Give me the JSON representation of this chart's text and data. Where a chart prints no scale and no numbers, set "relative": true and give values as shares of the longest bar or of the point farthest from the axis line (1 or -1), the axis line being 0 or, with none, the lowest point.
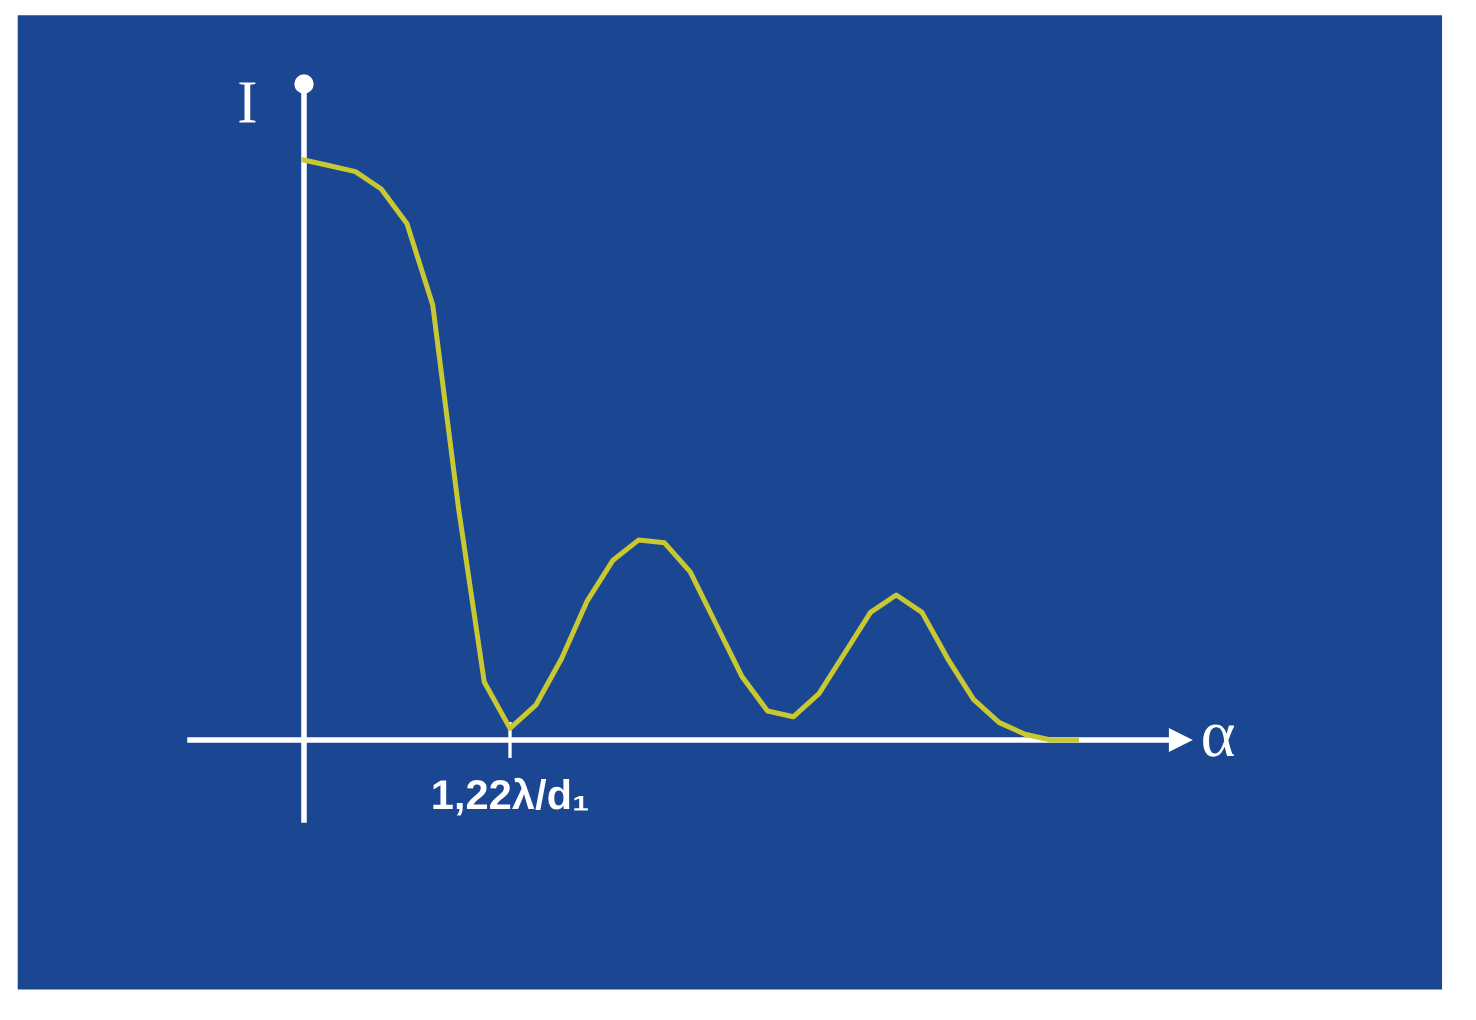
{
  "chart_data": {
    "type": "line",
    "relative": true,
    "xlabel": "α",
    "ylabel": "I",
    "annotations": [
      {
        "text": "1,22λ/d₁",
        "y": 0.02
      }
    ],
    "categories": [
      null,
      null,
      null,
      null,
      null,
      null,
      null,
      null,
      null,
      null,
      null,
      null,
      null,
      null,
      null,
      null,
      null,
      null,
      null,
      null,
      null,
      null,
      null,
      null,
      null,
      null,
      null,
      null,
      null,
      null,
      null
    ],
    "series": [
      {
        "color": "#c8c832",
        "values": [
          1.0,
          0.99,
          0.98,
          0.95,
          0.89,
          0.75,
          0.4,
          0.1,
          0.02,
          0.06,
          0.14,
          0.24,
          0.31,
          0.345,
          0.34,
          0.29,
          0.2,
          0.11,
          0.05,
          0.04,
          0.08,
          0.15,
          0.22,
          0.25,
          0.22,
          0.14,
          0.07,
          0.03,
          0.01,
          0,
          0
        ]
      }
    ],
    "grid": false,
    "legend": false,
    "marker": "none",
    "line_style": "solid"
  }
}
